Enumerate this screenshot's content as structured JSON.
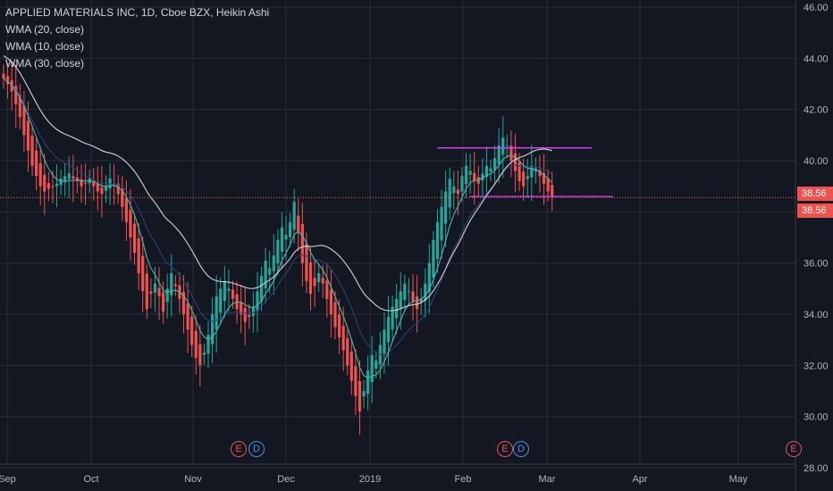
{
  "legend": {
    "title": "APPLIED MATERIALS INC, 1D, Cboe BZX, Heikin Ashi",
    "wma20": "WMA (20, close)",
    "wma10": "WMA (10, close)",
    "wma30": "WMA (30, close)"
  },
  "price_tags": {
    "tag1": "38.56",
    "tag2": "38.56"
  },
  "events": {
    "e_label": "E",
    "d_label": "D"
  },
  "colors": {
    "background": "#131722",
    "grid": "#2a2e39",
    "up": "#26a69a",
    "down": "#ef5350",
    "wma10": "#4db6ac",
    "wma20": "#2f3f73",
    "wma30": "#d1d4dc",
    "resistance": "#e040fb",
    "last_price_line": "#ef7a3b",
    "axis_text": "#b2b5be",
    "tag_bg": "#ef5350"
  },
  "chart_data": {
    "type": "candlestick",
    "style": "Heikin Ashi",
    "x_ticks": [
      "Sep",
      "Oct",
      "Nov",
      "Dec",
      "2019",
      "Feb",
      "Mar",
      "Apr",
      "May"
    ],
    "y_ticks": [
      "46.00",
      "44.00",
      "42.00",
      "40.00",
      "38.56",
      "36.00",
      "34.00",
      "32.00",
      "30.00",
      "28.00"
    ],
    "ylim": [
      28,
      46
    ],
    "last_price": 38.56,
    "resistance": 40.5,
    "support": 38.6,
    "events": [
      "E",
      "D",
      "E",
      "D",
      "E"
    ],
    "close": [
      43.2,
      43.0,
      42.7,
      42.2,
      41.7,
      41.0,
      40.4,
      39.8,
      39.4,
      39.0,
      38.8,
      38.9,
      39.0,
      39.1,
      39.3,
      39.4,
      39.5,
      39.3,
      39.2,
      39.0,
      39.1,
      39.3,
      39.0,
      38.8,
      38.7,
      39.0,
      39.3,
      39.1,
      38.7,
      38.2,
      37.6,
      37.0,
      36.4,
      35.6,
      34.9,
      34.2,
      34.8,
      35.2,
      34.7,
      34.1,
      35.0,
      35.6,
      35.1,
      34.6,
      34.0,
      33.4,
      32.8,
      32.3,
      32.0,
      32.5,
      33.2,
      34.0,
      34.7,
      35.0,
      35.3,
      35.0,
      34.6,
      34.2,
      34.0,
      33.7,
      33.9,
      34.3,
      34.9,
      35.5,
      36.1,
      35.8,
      36.3,
      36.9,
      37.4,
      37.1,
      37.6,
      38.4,
      37.2,
      36.0,
      35.3,
      34.8,
      35.1,
      35.6,
      35.2,
      34.6,
      34.0,
      33.5,
      33.1,
      32.6,
      32.0,
      31.4,
      30.8,
      30.2,
      31.0,
      31.8,
      32.4,
      32.2,
      32.8,
      33.4,
      33.9,
      34.3,
      34.6,
      34.9,
      35.2,
      34.9,
      34.5,
      34.2,
      34.6,
      35.2,
      36.0,
      36.9,
      37.6,
      38.2,
      38.8,
      39.3,
      39.0,
      38.7,
      39.4,
      39.8,
      39.6,
      39.2,
      39.1,
      39.5,
      39.8,
      39.7,
      40.1,
      40.6,
      40.9,
      40.6,
      40.0,
      39.6,
      39.2,
      39.0,
      39.4,
      39.8,
      39.7,
      39.4,
      39.1,
      38.8,
      38.6
    ]
  }
}
